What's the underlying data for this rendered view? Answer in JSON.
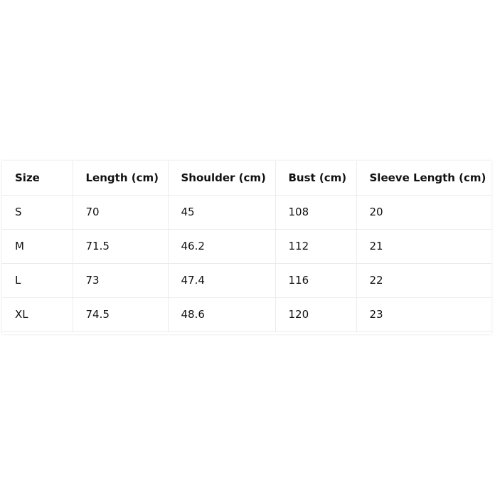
{
  "table": {
    "headers": [
      "Size",
      "Length (cm)",
      "Shoulder (cm)",
      "Bust (cm)",
      "Sleeve Length (cm)"
    ],
    "rows": [
      [
        "S",
        "70",
        "45",
        "108",
        "20"
      ],
      [
        "M",
        "71.5",
        "46.2",
        "112",
        "21"
      ],
      [
        "L",
        "73",
        "47.4",
        "116",
        "22"
      ],
      [
        "XL",
        "74.5",
        "48.6",
        "120",
        "23"
      ]
    ]
  }
}
